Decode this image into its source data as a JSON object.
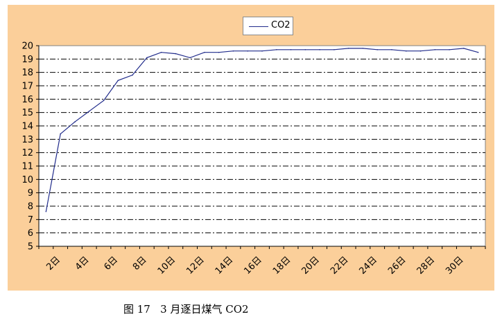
{
  "chart_data": {
    "type": "line",
    "x": [
      "1日",
      "2日",
      "3日",
      "4日",
      "5日",
      "6日",
      "7日",
      "8日",
      "9日",
      "10日",
      "11日",
      "12日",
      "13日",
      "14日",
      "15日",
      "16日",
      "17日",
      "18日",
      "19日",
      "20日",
      "21日",
      "22日",
      "23日",
      "24日",
      "25日",
      "26日",
      "27日",
      "28日",
      "29日",
      "30日",
      "31日"
    ],
    "xticklabels": [
      "2日",
      "4日",
      "6日",
      "8日",
      "10日",
      "12日",
      "14日",
      "16日",
      "18日",
      "20日",
      "22日",
      "24日",
      "26日",
      "28日",
      "30日"
    ],
    "series": [
      {
        "name": "CO2",
        "color": "#1f2a8a",
        "values": [
          7.6,
          13.4,
          14.3,
          15.1,
          15.9,
          17.4,
          17.8,
          19.1,
          19.5,
          19.4,
          19.1,
          19.5,
          19.5,
          19.6,
          19.6,
          19.6,
          19.7,
          19.7,
          19.7,
          19.7,
          19.7,
          19.8,
          19.8,
          19.7,
          19.7,
          19.6,
          19.6,
          19.7,
          19.7,
          19.8,
          19.5
        ]
      }
    ],
    "ylim": [
      5,
      20
    ],
    "yticks": [
      5,
      6,
      7,
      8,
      9,
      10,
      11,
      12,
      13,
      14,
      15,
      16,
      17,
      18,
      19,
      20
    ],
    "grid": "horizontal dash-dot",
    "legend_position": "top-center",
    "plot_background": "#ffffff",
    "chart_background": "#fbcf9a"
  },
  "legend": {
    "label": "CO2"
  },
  "caption": "图 17   3 月逐日煤气 CO2"
}
